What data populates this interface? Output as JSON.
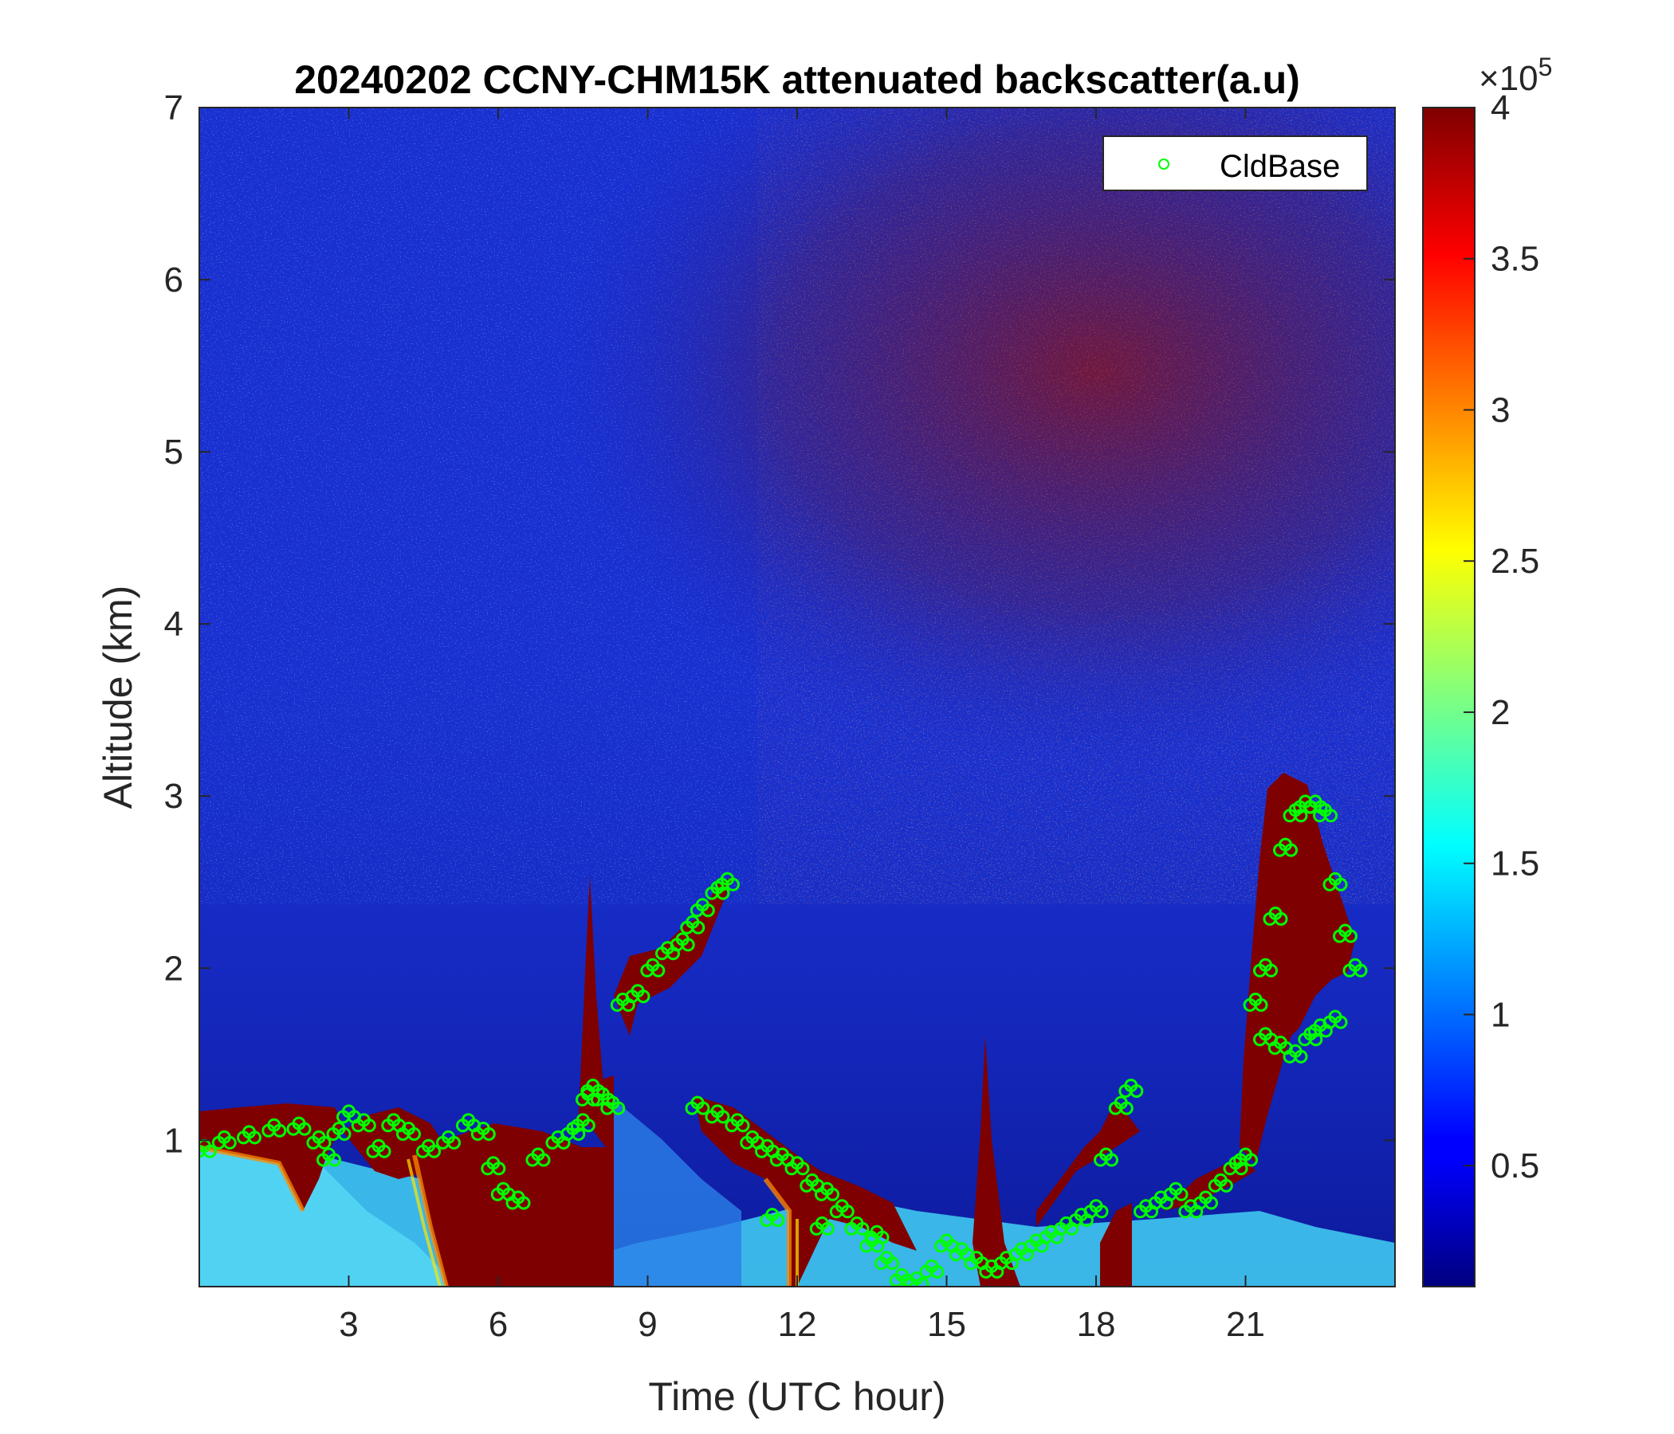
{
  "chart_data": {
    "type": "heatmap",
    "title": "20240202 CCNY-CHM15K attenuated backscatter(a.u)",
    "xlabel": "Time (UTC hour)",
    "ylabel": "Altitude (km)",
    "xlim": [
      0,
      24
    ],
    "ylim": [
      0.15,
      7
    ],
    "xticks": [
      3,
      6,
      9,
      12,
      15,
      18,
      21
    ],
    "yticks": [
      1,
      2,
      3,
      4,
      5,
      6,
      7
    ],
    "colorbar": {
      "range": [
        10000,
        400000
      ],
      "ticks": [
        0.5,
        1,
        1.5,
        2,
        2.5,
        3,
        3.5,
        4
      ],
      "multiplier_base": "×10",
      "multiplier_exponent": "5",
      "colormap": "jet"
    },
    "legend": {
      "label": "CldBase",
      "location": "top-right",
      "marker": "circle",
      "color": "#00ff00"
    },
    "series": [
      {
        "name": "CldBase",
        "marker": "circle",
        "x": [
          0.1,
          0.5,
          1.0,
          1.5,
          2.0,
          2.4,
          2.6,
          2.8,
          3.0,
          3.3,
          3.6,
          3.9,
          4.2,
          4.6,
          5.0,
          5.4,
          5.7,
          5.9,
          6.1,
          6.4,
          6.8,
          7.2,
          7.5,
          7.7,
          7.8,
          7.9,
          8.1,
          8.3,
          8.5,
          8.8,
          9.1,
          9.4,
          9.7,
          9.9,
          10.1,
          10.4,
          10.6,
          10.0,
          10.4,
          10.8,
          11.1,
          11.4,
          11.7,
          12.0,
          12.3,
          12.6,
          12.9,
          13.2,
          13.5,
          13.8,
          14.1,
          14.4,
          14.7,
          15.0,
          15.3,
          15.6,
          15.9,
          16.2,
          16.5,
          16.8,
          17.1,
          17.4,
          17.7,
          18.0,
          18.2,
          18.5,
          18.7,
          19.0,
          19.3,
          19.6,
          19.9,
          20.2,
          20.5,
          20.8,
          21.0,
          21.2,
          21.4,
          21.6,
          21.8,
          22.0,
          22.2,
          22.4,
          22.6,
          22.8,
          23.0,
          23.2,
          21.4,
          21.7,
          22.0,
          22.3,
          22.5,
          22.8,
          11.5,
          12.5,
          13.6
        ],
        "y": [
          0.95,
          1.0,
          1.03,
          1.07,
          1.08,
          1.0,
          0.9,
          1.05,
          1.15,
          1.1,
          0.95,
          1.1,
          1.05,
          0.95,
          1.0,
          1.1,
          1.05,
          0.85,
          0.7,
          0.65,
          0.9,
          1.0,
          1.05,
          1.1,
          1.25,
          1.3,
          1.25,
          1.2,
          1.8,
          1.85,
          2.0,
          2.1,
          2.15,
          2.25,
          2.35,
          2.45,
          2.5,
          1.2,
          1.15,
          1.1,
          1.0,
          0.95,
          0.9,
          0.85,
          0.75,
          0.7,
          0.6,
          0.5,
          0.4,
          0.3,
          0.2,
          0.18,
          0.25,
          0.4,
          0.35,
          0.3,
          0.25,
          0.3,
          0.35,
          0.4,
          0.45,
          0.5,
          0.55,
          0.6,
          0.9,
          1.2,
          1.3,
          0.6,
          0.65,
          0.7,
          0.6,
          0.65,
          0.75,
          0.85,
          0.9,
          1.8,
          2.0,
          2.3,
          2.7,
          2.9,
          2.95,
          2.95,
          2.9,
          2.5,
          2.2,
          2.0,
          1.6,
          1.55,
          1.5,
          1.6,
          1.65,
          1.7,
          0.55,
          0.5,
          0.45
        ]
      }
    ]
  }
}
